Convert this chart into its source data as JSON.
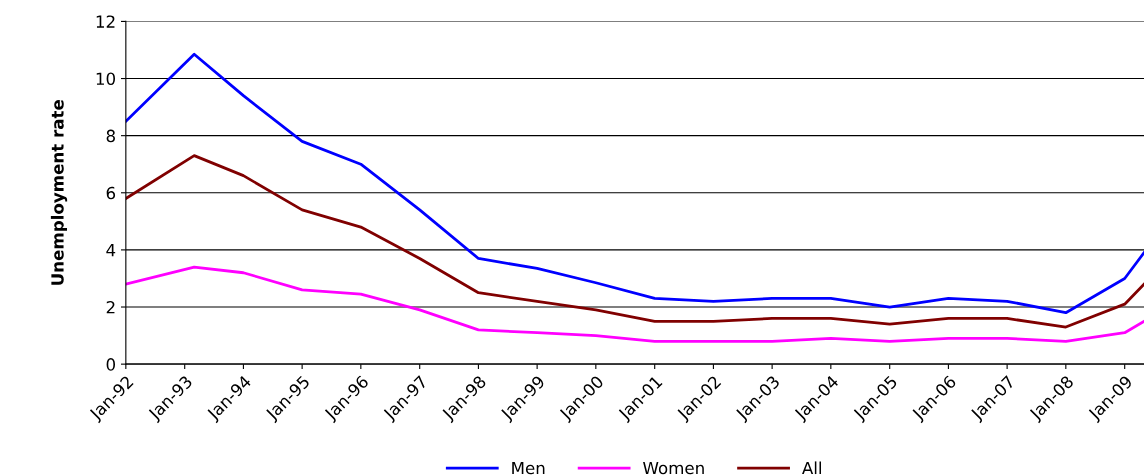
{
  "chart_data": {
    "type": "line",
    "ylabel": "Unemployment rate",
    "x": [
      "1992-01",
      "1993-03",
      "1994-01",
      "1995-01",
      "1996-01",
      "1997-01",
      "1998-01",
      "1999-01",
      "2000-01",
      "2001-01",
      "2002-01",
      "2003-01",
      "2004-01",
      "2005-01",
      "2006-01",
      "2007-01",
      "2008-01",
      "2009-01",
      "2009-05"
    ],
    "series": [
      {
        "name": "Men",
        "color": "#0000ff",
        "values": [
          8.5,
          10.85,
          9.4,
          7.8,
          7.0,
          5.4,
          3.7,
          3.35,
          2.85,
          2.3,
          2.2,
          2.3,
          2.3,
          2.0,
          2.3,
          2.2,
          1.8,
          3.0,
          3.9
        ]
      },
      {
        "name": "Women",
        "color": "#ff00ff",
        "values": [
          2.8,
          3.4,
          3.2,
          2.6,
          2.45,
          1.9,
          1.2,
          1.1,
          1.0,
          0.8,
          0.8,
          0.8,
          0.9,
          0.8,
          0.9,
          0.9,
          0.8,
          1.1,
          1.5
        ]
      },
      {
        "name": "All",
        "color": "#800000",
        "values": [
          5.8,
          7.3,
          6.6,
          5.4,
          4.8,
          3.7,
          2.5,
          2.2,
          1.9,
          1.5,
          1.5,
          1.6,
          1.6,
          1.4,
          1.6,
          1.6,
          1.3,
          2.1,
          2.8
        ]
      }
    ],
    "xlim": [
      "1992-01",
      "2009-05"
    ],
    "xticks": [
      {
        "value": "1992-01",
        "label": "Jan-92"
      },
      {
        "value": "1993-01",
        "label": "Jan-93"
      },
      {
        "value": "1994-01",
        "label": "Jan-94"
      },
      {
        "value": "1995-01",
        "label": "Jan-95"
      },
      {
        "value": "1996-01",
        "label": "Jan-96"
      },
      {
        "value": "1997-01",
        "label": "Jan-97"
      },
      {
        "value": "1998-01",
        "label": "Jan-98"
      },
      {
        "value": "1999-01",
        "label": "Jan-99"
      },
      {
        "value": "2000-01",
        "label": "Jan-00"
      },
      {
        "value": "2001-01",
        "label": "Jan-01"
      },
      {
        "value": "2002-01",
        "label": "Jan-02"
      },
      {
        "value": "2003-01",
        "label": "Jan-03"
      },
      {
        "value": "2004-01",
        "label": "Jan-04"
      },
      {
        "value": "2005-01",
        "label": "Jan-05"
      },
      {
        "value": "2006-01",
        "label": "Jan-06"
      },
      {
        "value": "2007-01",
        "label": "Jan-07"
      },
      {
        "value": "2008-01",
        "label": "Jan-08"
      },
      {
        "value": "2009-01",
        "label": "Jan-09"
      }
    ],
    "ylim": [
      0,
      12
    ],
    "yticks": [
      0,
      2,
      4,
      6,
      8,
      10,
      12
    ],
    "grid": "y",
    "legend": "bottom",
    "marker": "none",
    "line_style": "solid"
  }
}
